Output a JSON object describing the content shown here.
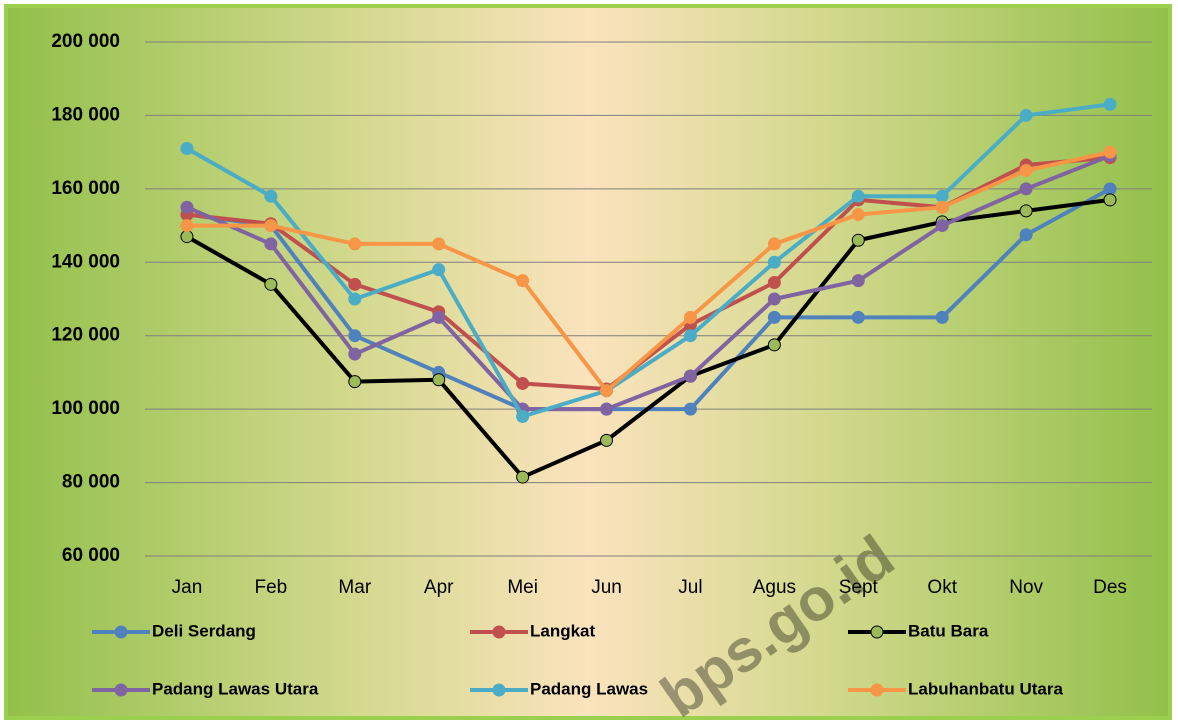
{
  "chart_data": {
    "type": "line",
    "categories": [
      "Jan",
      "Feb",
      "Mar",
      "Apr",
      "Mei",
      "Jun",
      "Jul",
      "Agus",
      "Sept",
      "Okt",
      "Nov",
      "Des"
    ],
    "series": [
      {
        "name": "Deli Serdang",
        "color": "#4f81bd",
        "marker_fill": "#4f81bd",
        "values": [
          153000,
          150000,
          120000,
          110000,
          100000,
          100000,
          100000,
          125000,
          125000,
          125000,
          147500,
          160000
        ]
      },
      {
        "name": "Langkat",
        "color": "#c0504d",
        "marker_fill": "#c0504d",
        "values": [
          153000,
          150500,
          134000,
          126500,
          107000,
          105500,
          123000,
          134500,
          157000,
          155000,
          166500,
          168500
        ]
      },
      {
        "name": "Batu Bara",
        "color": "#000000",
        "marker_fill": "#9bbb59",
        "values": [
          147000,
          134000,
          107500,
          108000,
          81500,
          91500,
          109000,
          117500,
          146000,
          151000,
          154000,
          157000
        ]
      },
      {
        "name": "Padang Lawas Utara",
        "color": "#8064a2",
        "marker_fill": "#8064a2",
        "values": [
          155000,
          145000,
          115000,
          125000,
          100000,
          100000,
          109000,
          130000,
          135000,
          150000,
          160000,
          169000
        ]
      },
      {
        "name": "Padang Lawas",
        "color": "#4bacc6",
        "marker_fill": "#4bacc6",
        "values": [
          171000,
          158000,
          130000,
          138000,
          98000,
          105000,
          120000,
          140000,
          158000,
          158000,
          180000,
          183000
        ]
      },
      {
        "name": "Labuhanbatu Utara",
        "color": "#f79646",
        "marker_fill": "#f79646",
        "values": [
          150000,
          150000,
          145000,
          145000,
          135000,
          105000,
          125000,
          145000,
          153000,
          155000,
          165000,
          170000
        ]
      }
    ],
    "ylim": [
      60000,
      200000
    ],
    "yticks": [
      {
        "value": 60000,
        "label": "60 000"
      },
      {
        "value": 80000,
        "label": "80 000"
      },
      {
        "value": 100000,
        "label": "100 000"
      },
      {
        "value": 120000,
        "label": "120 000"
      },
      {
        "value": 140000,
        "label": "140 000"
      },
      {
        "value": 160000,
        "label": "160 000"
      },
      {
        "value": 180000,
        "label": "180 000"
      },
      {
        "value": 200000,
        "label": "200 000"
      }
    ],
    "grid": true,
    "legend": "bottom",
    "watermark": "bps.go.id"
  }
}
